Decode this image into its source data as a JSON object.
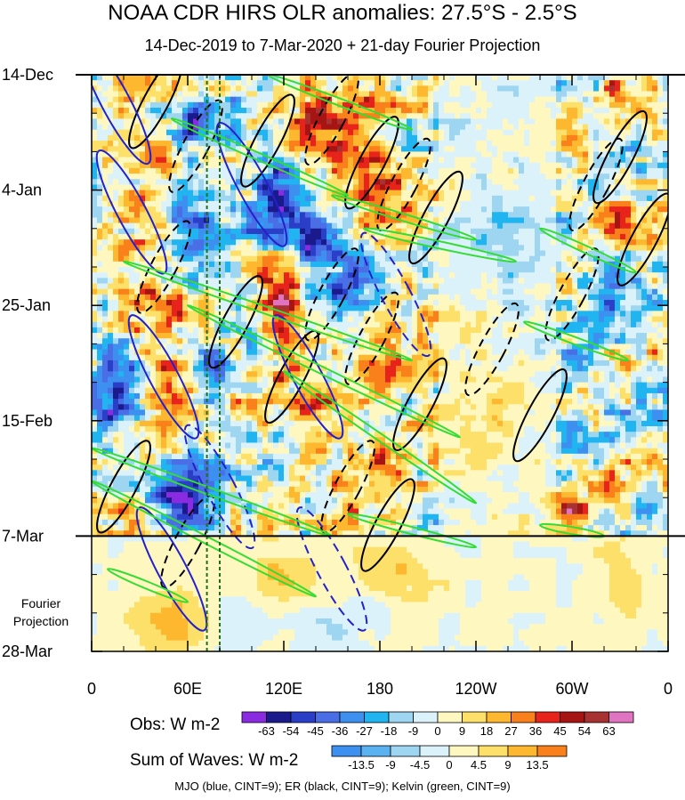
{
  "chart_data": {
    "type": "heatmap",
    "title": "NOAA CDR HIRS OLR anomalies: 27.5°S - 2.5°S",
    "subtitle": "14-Dec-2019 to 7-Mar-2020 + 21-day Fourier Projection",
    "x_ticks": [
      "0",
      "60E",
      "120E",
      "180",
      "120W",
      "60W",
      "0"
    ],
    "x_tick_lon": [
      0,
      60,
      120,
      180,
      240,
      300,
      360
    ],
    "y_ticks": [
      "14-Dec",
      "4-Jan",
      "25-Jan",
      "15-Feb",
      "7-Mar",
      "28-Mar"
    ],
    "y_tick_day": [
      0,
      21,
      42,
      63,
      84,
      105
    ],
    "projection_label": "Fourier Projection",
    "projection_start_day": 84,
    "reference_lines_lon": [
      72,
      80
    ],
    "obs_legend": {
      "label": "Obs: W m-2",
      "levels": [
        "-63",
        "-54",
        "-45",
        "-36",
        "-27",
        "-18",
        "-9",
        "0",
        "9",
        "18",
        "27",
        "36",
        "45",
        "54",
        "63"
      ],
      "colors": [
        "#8a2be2",
        "#1a1a8c",
        "#2a3ec8",
        "#4a6ee6",
        "#3d8ff0",
        "#20b4f0",
        "#9ed6f2",
        "#dcf2fb",
        "#fff7c0",
        "#fde06a",
        "#fdb830",
        "#f9801a",
        "#e8231b",
        "#a61414",
        "#a83232",
        "#e074c2"
      ]
    },
    "waves_legend": {
      "label": "Sum of Waves: W m-2",
      "levels": [
        "-13.5",
        "-9",
        "-4.5",
        "0",
        "4.5",
        "9",
        "13.5"
      ],
      "colors": [
        "#3d8ff0",
        "#5ab2f0",
        "#9ed6f2",
        "#dcf2fb",
        "#fff7c0",
        "#fde06a",
        "#fdb830",
        "#f9801a"
      ]
    },
    "footer": "MJO (blue, CINT=9); ER (black, CINT=9); Kelvin (green, CINT=9)",
    "contours": {
      "mjo": {
        "color": "#2222cc",
        "cint": 9
      },
      "er": {
        "color": "#000000",
        "cint": 9
      },
      "kelvin": {
        "color": "#33dd33",
        "cint": 9
      }
    },
    "features": [
      {
        "lon": 40,
        "day": 12,
        "w": 25,
        "h": 4,
        "v": 40
      },
      {
        "lon": 65,
        "day": 10,
        "w": 18,
        "h": 6,
        "v": -45
      },
      {
        "lon": 140,
        "day": 5,
        "w": 20,
        "h": 5,
        "v": 40
      },
      {
        "lon": 160,
        "day": 15,
        "w": 25,
        "h": 8,
        "v": 35
      },
      {
        "lon": 190,
        "day": 20,
        "w": 20,
        "h": 6,
        "v": 30
      },
      {
        "lon": 115,
        "day": 22,
        "w": 15,
        "h": 10,
        "v": -45
      },
      {
        "lon": 60,
        "day": 30,
        "w": 15,
        "h": 8,
        "v": -40
      },
      {
        "lon": 35,
        "day": 38,
        "w": 25,
        "h": 10,
        "v": 30
      },
      {
        "lon": 120,
        "day": 42,
        "w": 12,
        "h": 10,
        "v": 55
      },
      {
        "lon": 140,
        "day": 30,
        "w": 18,
        "h": 5,
        "v": -60
      },
      {
        "lon": 160,
        "day": 38,
        "w": 15,
        "h": 6,
        "v": -35
      },
      {
        "lon": 15,
        "day": 55,
        "w": 15,
        "h": 10,
        "v": -40
      },
      {
        "lon": 50,
        "day": 57,
        "w": 15,
        "h": 6,
        "v": 45
      },
      {
        "lon": 75,
        "day": 55,
        "w": 12,
        "h": 6,
        "v": -40
      },
      {
        "lon": 145,
        "day": 62,
        "w": 20,
        "h": 5,
        "v": 40
      },
      {
        "lon": 180,
        "day": 55,
        "w": 15,
        "h": 6,
        "v": 40
      },
      {
        "lon": 185,
        "day": 70,
        "w": 15,
        "h": 6,
        "v": 30
      },
      {
        "lon": 60,
        "day": 78,
        "w": 20,
        "h": 6,
        "v": -45
      },
      {
        "lon": 20,
        "day": 80,
        "w": 15,
        "h": 4,
        "v": 35
      },
      {
        "lon": 170,
        "day": 80,
        "w": 25,
        "h": 5,
        "v": 25
      },
      {
        "lon": 300,
        "day": 80,
        "w": 12,
        "h": 5,
        "v": 45
      },
      {
        "lon": 320,
        "day": 40,
        "w": 15,
        "h": 8,
        "v": -30
      },
      {
        "lon": 330,
        "day": 25,
        "w": 15,
        "h": 6,
        "v": 30
      },
      {
        "lon": 300,
        "day": 55,
        "w": 12,
        "h": 6,
        "v": -20
      },
      {
        "lon": 330,
        "day": 3,
        "w": 10,
        "h": 4,
        "v": 45
      },
      {
        "lon": 260,
        "day": 30,
        "w": 30,
        "h": 10,
        "v": -15
      },
      {
        "lon": 240,
        "day": 60,
        "w": 30,
        "h": 15,
        "v": 10
      },
      {
        "lon": 50,
        "day": 100,
        "w": 30,
        "h": 6,
        "v": 10
      },
      {
        "lon": 120,
        "day": 92,
        "w": 25,
        "h": 6,
        "v": 8
      },
      {
        "lon": 190,
        "day": 90,
        "w": 20,
        "h": 5,
        "v": 8
      },
      {
        "lon": 150,
        "day": 100,
        "w": 25,
        "h": 6,
        "v": -6
      },
      {
        "lon": 90,
        "day": 100,
        "w": 20,
        "h": 5,
        "v": -5
      },
      {
        "lon": 330,
        "day": 92,
        "w": 15,
        "h": 6,
        "v": 6
      }
    ]
  }
}
